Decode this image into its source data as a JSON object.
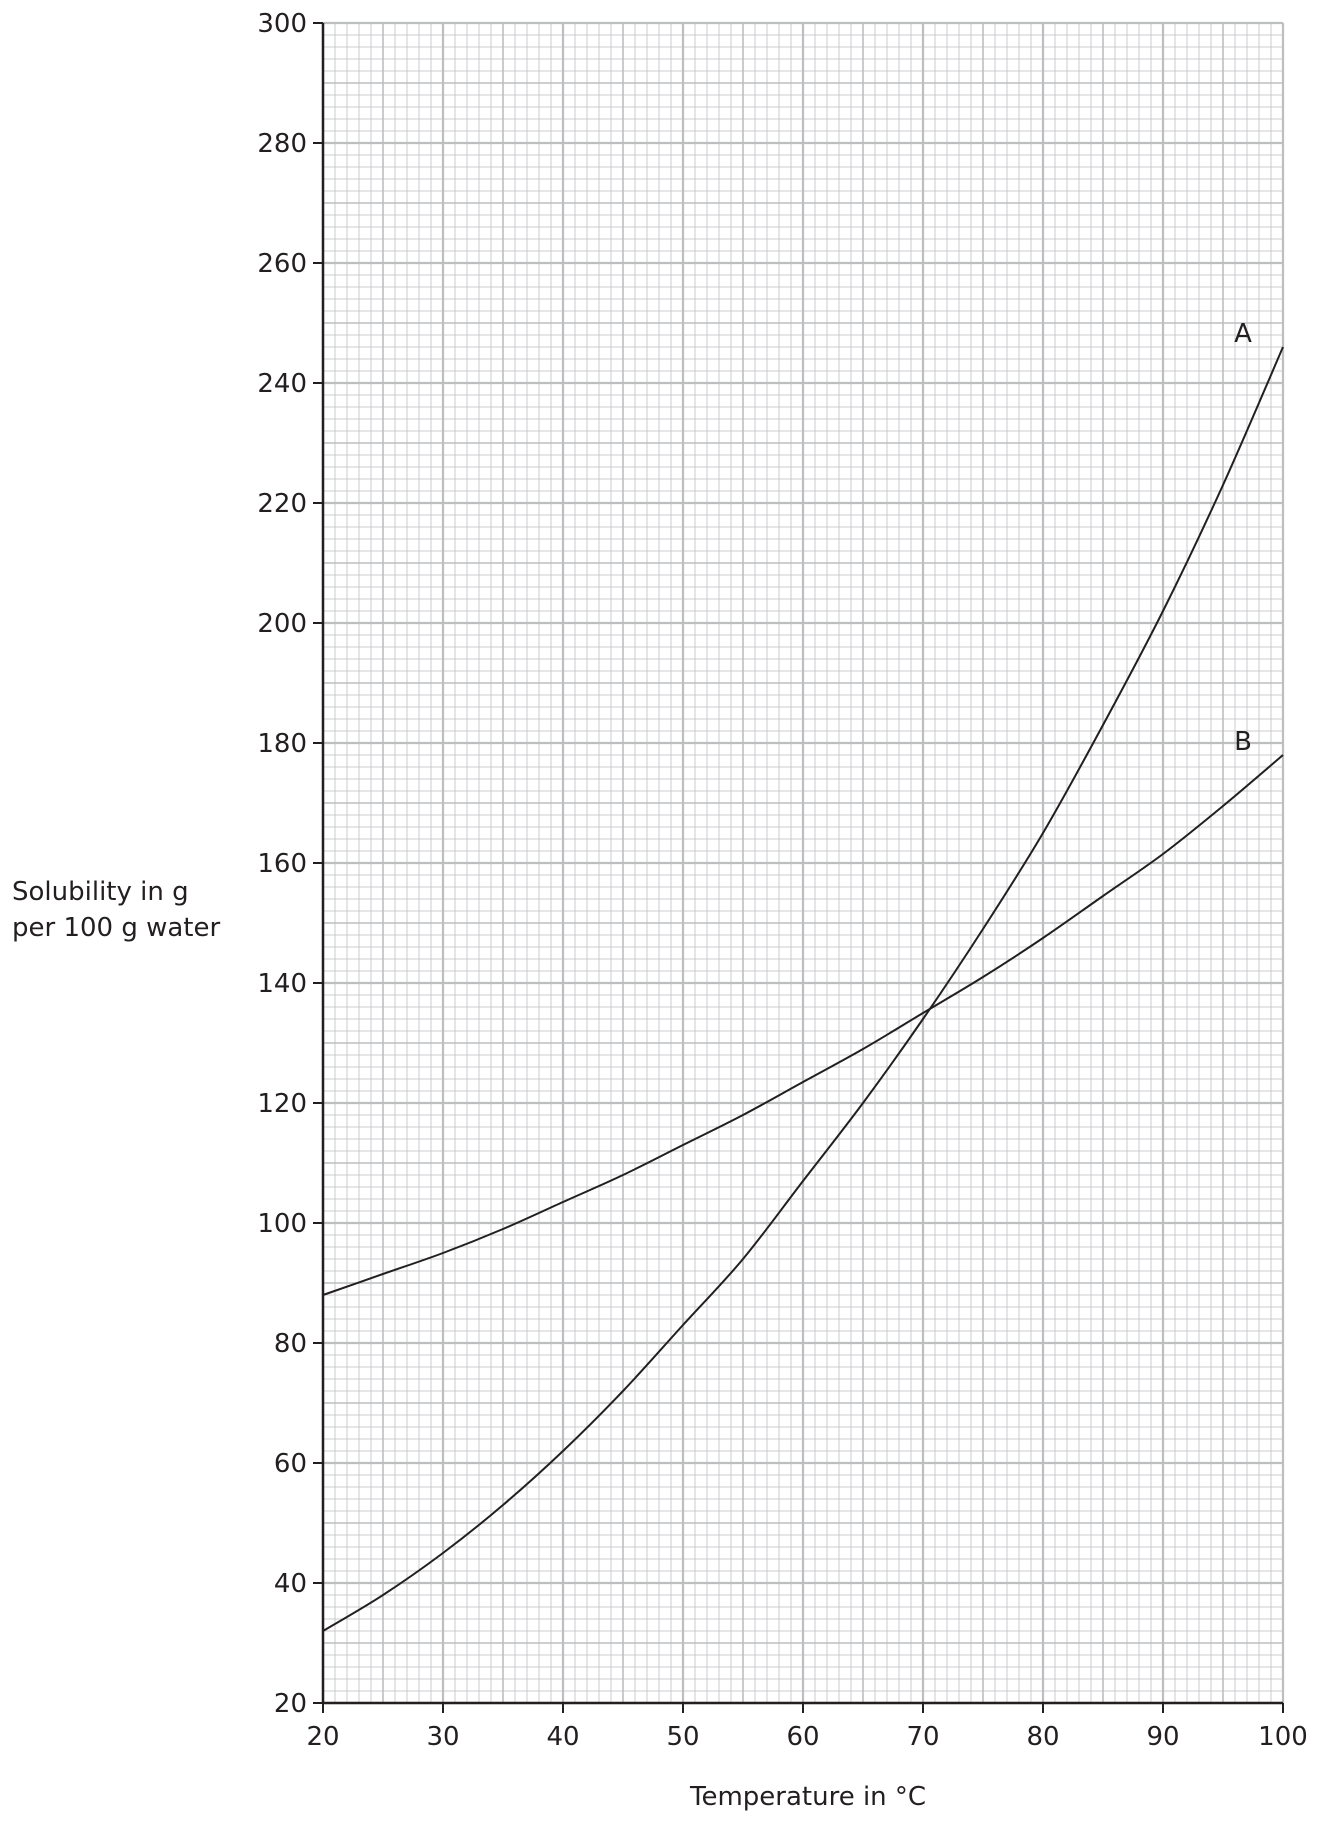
{
  "chart_data": {
    "type": "line",
    "title": "",
    "xlabel": "Temperature in °C",
    "ylabel_lines": [
      "Solubility in g",
      "per 100 g water"
    ],
    "xlim": [
      20,
      100
    ],
    "ylim": [
      20,
      300
    ],
    "x_ticks": [
      20,
      30,
      40,
      50,
      60,
      70,
      80,
      90,
      100
    ],
    "y_ticks": [
      20,
      40,
      60,
      80,
      100,
      120,
      140,
      160,
      180,
      200,
      220,
      240,
      260,
      280,
      300
    ],
    "grid": true,
    "series": [
      {
        "name": "A",
        "x": [
          20,
          25,
          30,
          35,
          40,
          45,
          50,
          55,
          60,
          65,
          70,
          75,
          80,
          85,
          90,
          95,
          100
        ],
        "y": [
          32,
          38,
          45,
          53,
          62,
          72,
          83,
          94,
          107,
          120,
          134,
          149,
          165,
          183,
          202,
          223,
          246
        ]
      },
      {
        "name": "B",
        "x": [
          20,
          25,
          30,
          35,
          40,
          45,
          50,
          55,
          60,
          65,
          70,
          75,
          80,
          85,
          90,
          95,
          100
        ],
        "y": [
          88,
          91.5,
          95,
          99,
          103.5,
          108,
          113,
          118,
          123.5,
          129,
          135,
          141,
          147.5,
          154.5,
          161.5,
          169.5,
          178
        ]
      }
    ],
    "line_color": "#231f20",
    "grid_color": "#bcbec0"
  }
}
